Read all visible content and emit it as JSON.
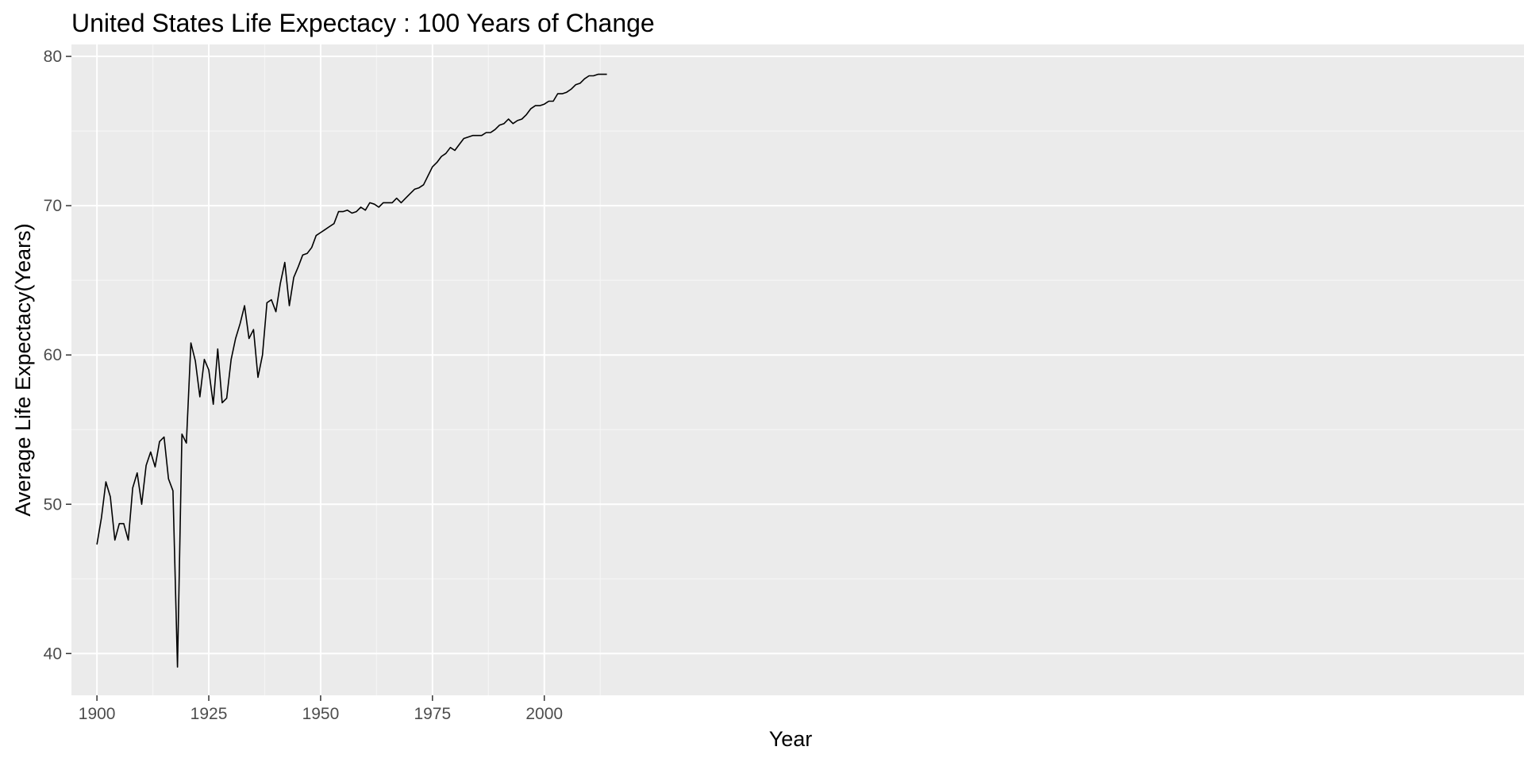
{
  "chart_data": {
    "type": "line",
    "title": "United States Life Expectacy : 100 Years of Change",
    "xlabel": "Year",
    "ylabel": "Average Life Expectacy(Years)",
    "xlim": [
      1894.3,
      2219.0
    ],
    "ylim": [
      37.2,
      80.8
    ],
    "x_ticks": [
      1900,
      1925,
      1950,
      1975,
      2000
    ],
    "x_tick_labels": [
      "1900",
      "1925",
      "1950",
      "1975",
      "2000"
    ],
    "y_ticks": [
      40,
      50,
      60,
      70,
      80
    ],
    "y_tick_labels": [
      "40",
      "50",
      "60",
      "70",
      "80"
    ],
    "grid": true,
    "colors": {
      "panel_background": "#ebebeb",
      "grid_major": "#ffffff",
      "grid_minor": "#f5f5f5",
      "line": "#000000",
      "tick_label": "#4d4d4d",
      "tick_mark": "#333333"
    },
    "series": [
      {
        "x": [
          1900,
          1901,
          1902,
          1903,
          1904,
          1905,
          1906,
          1907,
          1908,
          1909,
          1910,
          1911,
          1912,
          1913,
          1914,
          1915,
          1916,
          1917,
          1918,
          1919,
          1920,
          1921,
          1922,
          1923,
          1924,
          1925,
          1926,
          1927,
          1928,
          1929,
          1930,
          1931,
          1932,
          1933,
          1934,
          1935,
          1936,
          1937,
          1938,
          1939,
          1940,
          1941,
          1942,
          1943,
          1944,
          1945,
          1946,
          1947,
          1948,
          1949,
          1950,
          1951,
          1952,
          1953,
          1954,
          1955,
          1956,
          1957,
          1958,
          1959,
          1960,
          1961,
          1962,
          1963,
          1964,
          1965,
          1966,
          1967,
          1968,
          1969,
          1970,
          1971,
          1972,
          1973,
          1974,
          1975,
          1976,
          1977,
          1978,
          1979,
          1980,
          1981,
          1982,
          1983,
          1984,
          1985,
          1986,
          1987,
          1988,
          1989,
          1990,
          1991,
          1992,
          1993,
          1994,
          1995,
          1996,
          1997,
          1998,
          1999,
          2000,
          2001,
          2002,
          2003,
          2004,
          2005,
          2006,
          2007,
          2008,
          2009,
          2010,
          2011,
          2012,
          2013,
          2014
        ],
        "values": [
          47.3,
          49.1,
          51.5,
          50.5,
          47.6,
          48.7,
          48.7,
          47.6,
          51.1,
          52.1,
          50.0,
          52.6,
          53.5,
          52.5,
          54.2,
          54.5,
          51.7,
          50.9,
          39.1,
          54.7,
          54.1,
          60.8,
          59.6,
          57.2,
          59.7,
          59.0,
          56.7,
          60.4,
          56.8,
          57.1,
          59.7,
          61.1,
          62.1,
          63.3,
          61.1,
          61.7,
          58.5,
          60.0,
          63.5,
          63.7,
          62.9,
          64.8,
          66.2,
          63.3,
          65.2,
          65.9,
          66.7,
          66.8,
          67.2,
          68.0,
          68.2,
          68.4,
          68.6,
          68.8,
          69.6,
          69.6,
          69.7,
          69.5,
          69.6,
          69.9,
          69.7,
          70.2,
          70.1,
          69.9,
          70.2,
          70.2,
          70.2,
          70.5,
          70.2,
          70.5,
          70.8,
          71.1,
          71.2,
          71.4,
          72.0,
          72.6,
          72.9,
          73.3,
          73.5,
          73.9,
          73.7,
          74.1,
          74.5,
          74.6,
          74.7,
          74.7,
          74.7,
          74.9,
          74.9,
          75.1,
          75.4,
          75.5,
          75.8,
          75.5,
          75.7,
          75.8,
          76.1,
          76.5,
          76.7,
          76.7,
          76.8,
          77.0,
          77.0,
          77.5,
          77.5,
          77.6,
          77.8,
          78.1,
          78.2,
          78.5,
          78.7,
          78.7,
          78.8,
          78.8,
          78.8
        ]
      }
    ]
  }
}
